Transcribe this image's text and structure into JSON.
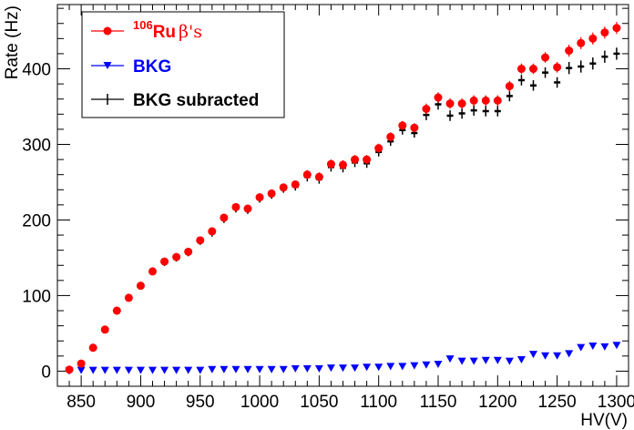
{
  "chart_data": {
    "type": "scatter",
    "title": "",
    "xlabel": "HV(V)",
    "ylabel": "Rate (Hz)",
    "xlim": [
      830,
      1310
    ],
    "ylim": [
      -20,
      485
    ],
    "xticks": [
      850,
      900,
      950,
      1000,
      1050,
      1100,
      1150,
      1200,
      1250,
      1300
    ],
    "xtick_labels": [
      "850",
      "900",
      "950",
      "1000",
      "1050",
      "1100",
      "1150",
      "1200",
      "1250",
      "1300"
    ],
    "yticks": [
      0,
      100,
      200,
      300,
      400
    ],
    "ytick_labels": [
      "0",
      "100",
      "200",
      "300",
      "400"
    ],
    "grid": false,
    "legend_position": "top-left",
    "x": [
      840,
      850,
      860,
      870,
      880,
      890,
      900,
      910,
      920,
      930,
      940,
      950,
      960,
      970,
      980,
      990,
      1000,
      1010,
      1020,
      1030,
      1040,
      1050,
      1060,
      1070,
      1080,
      1090,
      1100,
      1110,
      1120,
      1130,
      1140,
      1150,
      1160,
      1170,
      1180,
      1190,
      1200,
      1210,
      1220,
      1230,
      1240,
      1250,
      1260,
      1270,
      1280,
      1290,
      1300
    ],
    "series": [
      {
        "name": "Ru beta's",
        "legend_sup": "106",
        "legend_main": "Ru",
        "legend_rest": "β's",
        "color": "#ff0000",
        "marker": "circle",
        "values": [
          2,
          10,
          31,
          55,
          80,
          97,
          113,
          132,
          145,
          151,
          158,
          173,
          185,
          203,
          217,
          215,
          230,
          235,
          243,
          247,
          260,
          257,
          274,
          273,
          280,
          280,
          295,
          310,
          325,
          322,
          347,
          362,
          354,
          354,
          358,
          358,
          358,
          377,
          400,
          400,
          415,
          402,
          424,
          434,
          440,
          448,
          454
        ],
        "errors": [
          1,
          2,
          3,
          3,
          4,
          4,
          4,
          4,
          5,
          5,
          5,
          5,
          5,
          5,
          5,
          5,
          5,
          5,
          5,
          5,
          6,
          6,
          6,
          6,
          6,
          6,
          6,
          6,
          6,
          6,
          7,
          7,
          7,
          7,
          7,
          7,
          7,
          7,
          7,
          7,
          7,
          7,
          8,
          8,
          8,
          8,
          8
        ]
      },
      {
        "name": "BKG",
        "color": "#0000ff",
        "marker": "triangle-down",
        "values": [
          0,
          1,
          1,
          1,
          1,
          1,
          1,
          1,
          1,
          1,
          1,
          1,
          2,
          2,
          2,
          2,
          2,
          2,
          2,
          3,
          3,
          3,
          4,
          4,
          4,
          5,
          5,
          6,
          6,
          7,
          8,
          9,
          16,
          13,
          13,
          14,
          14,
          13,
          15,
          22,
          20,
          20,
          23,
          31,
          33,
          32,
          34
        ]
      },
      {
        "name": "BKG subracted",
        "color": "#000000",
        "marker": "cross",
        "values": [
          2,
          9,
          30,
          54,
          79,
          96,
          112,
          131,
          144,
          150,
          157,
          172,
          183,
          201,
          215,
          213,
          228,
          233,
          241,
          244,
          257,
          254,
          270,
          269,
          276,
          275,
          290,
          304,
          319,
          315,
          339,
          353,
          338,
          341,
          345,
          344,
          344,
          364,
          385,
          378,
          395,
          382,
          401,
          403,
          407,
          416,
          420
        ],
        "errors": [
          1,
          2,
          3,
          3,
          4,
          4,
          4,
          4,
          5,
          5,
          5,
          5,
          5,
          5,
          5,
          5,
          5,
          5,
          5,
          5,
          6,
          6,
          6,
          6,
          6,
          6,
          6,
          6,
          6,
          6,
          7,
          7,
          7,
          7,
          7,
          7,
          7,
          7,
          7,
          7,
          7,
          7,
          8,
          8,
          8,
          8,
          8
        ]
      }
    ]
  }
}
